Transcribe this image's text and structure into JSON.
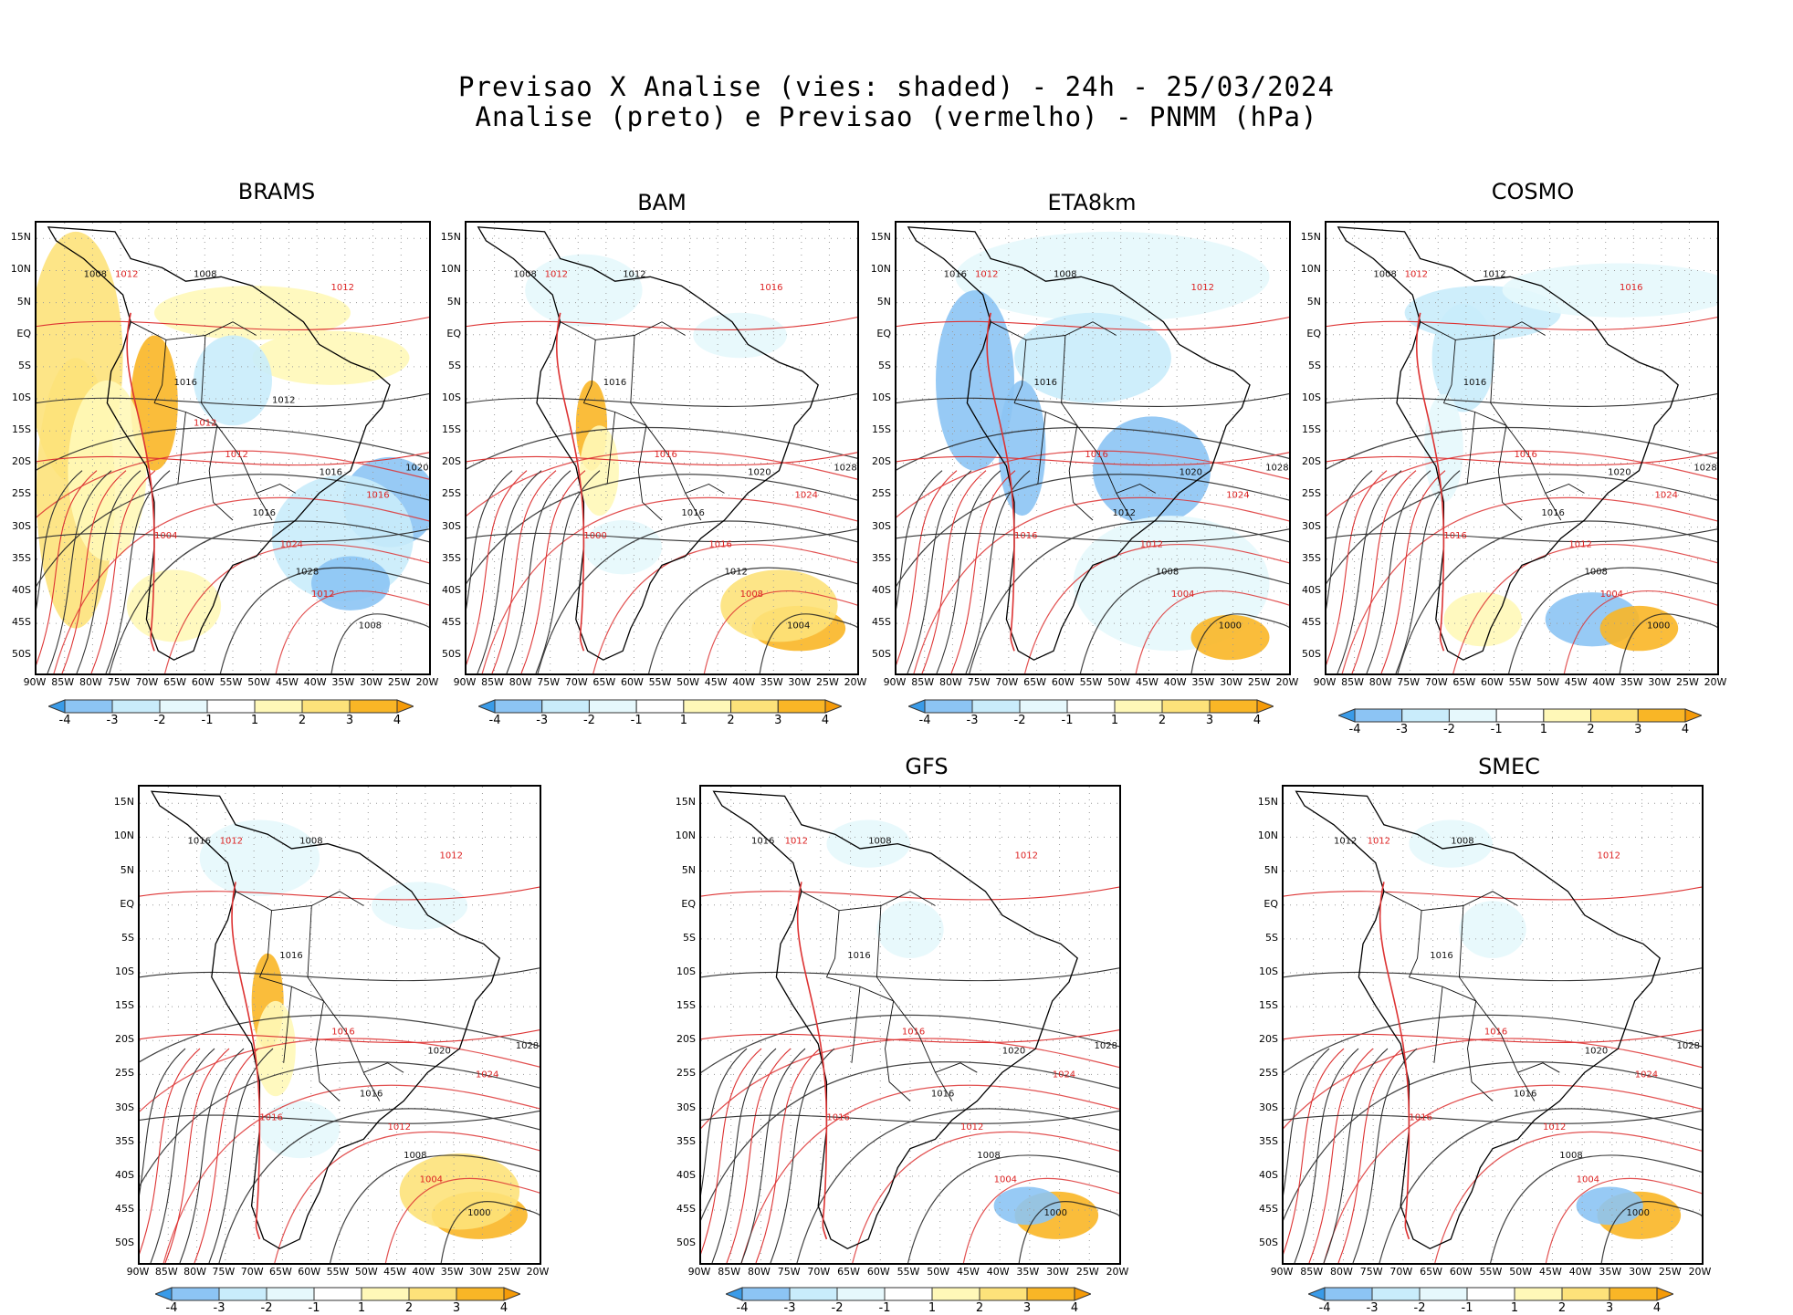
{
  "header": {
    "line1": "Previsao X Analise (vies: shaded) - 24h - 25/03/2024",
    "line2": "Analise (preto) e Previsao (vermelho) - PNMM (hPa)"
  },
  "axes": {
    "y_ticks": [
      "15N",
      "10N",
      "5N",
      "EQ",
      "5S",
      "10S",
      "15S",
      "20S",
      "25S",
      "30S",
      "35S",
      "40S",
      "45S",
      "50S"
    ],
    "x_ticks": [
      "90W",
      "85W",
      "80W",
      "75W",
      "70W",
      "65W",
      "60W",
      "55W",
      "50W",
      "45W",
      "40W",
      "35W",
      "30W",
      "25W",
      "20W"
    ]
  },
  "colorbar": {
    "labels": [
      "-4",
      "-3",
      "-2",
      "-1",
      "1",
      "2",
      "3",
      "4"
    ],
    "colors": [
      "#3a9be8",
      "#8cc4f4",
      "#c9ecfb",
      "#e6f8fc",
      "#ffffff",
      "#fff8b8",
      "#fde27a",
      "#f9b626",
      "#f59b08"
    ]
  },
  "panels": [
    {
      "name": "BRAMS",
      "bias": "warm-strong",
      "labels": [
        "1008",
        "1012",
        "1008",
        "1012",
        "1016",
        "1012",
        "1016",
        "1016",
        "1020",
        "1024",
        "1028",
        "1012",
        "1008",
        "1004",
        "1016",
        "1012",
        "1012"
      ]
    },
    {
      "name": "BAM",
      "bias": "mixed",
      "labels": [
        "1008",
        "1012",
        "1012",
        "1016",
        "1016",
        "1016",
        "1020",
        "1024",
        "1028",
        "1016",
        "1012",
        "1008",
        "1004",
        "1000",
        "1016"
      ]
    },
    {
      "name": "ETA8km",
      "bias": "cold",
      "labels": [
        "1016",
        "1012",
        "1008",
        "1012",
        "1016",
        "1016",
        "1020",
        "1024",
        "1028",
        "1012",
        "1008",
        "1004",
        "1000",
        "1016",
        "1012"
      ]
    },
    {
      "name": "COSMO",
      "bias": "cold-mixed",
      "labels": [
        "1008",
        "1012",
        "1012",
        "1016",
        "1016",
        "1016",
        "1020",
        "1024",
        "1028",
        "1012",
        "1008",
        "1004",
        "1000",
        "1016",
        "1016"
      ]
    },
    {
      "name": "",
      "bias": "mixed",
      "labels": [
        "1016",
        "1012",
        "1008",
        "1012",
        "1016",
        "1016",
        "1020",
        "1024",
        "1028",
        "1012",
        "1008",
        "1004",
        "1000",
        "1016",
        "1016"
      ]
    },
    {
      "name": "GFS",
      "bias": "light",
      "labels": [
        "1016",
        "1012",
        "1008",
        "1012",
        "1016",
        "1016",
        "1020",
        "1024",
        "1028",
        "1012",
        "1008",
        "1004",
        "1000",
        "1016",
        "1016"
      ]
    },
    {
      "name": "SMEC",
      "bias": "light",
      "labels": [
        "1012",
        "1012",
        "1008",
        "1012",
        "1016",
        "1016",
        "1020",
        "1024",
        "1028",
        "1012",
        "1008",
        "1004",
        "1000",
        "1016",
        "1016"
      ]
    }
  ]
}
